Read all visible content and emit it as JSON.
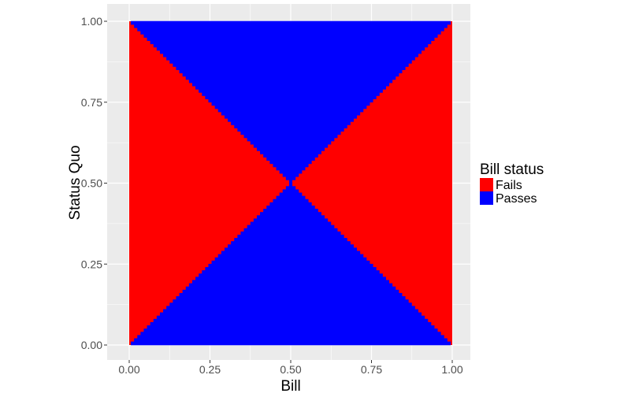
{
  "chart_data": {
    "type": "heatmap",
    "title": "",
    "xlabel": "Bill",
    "ylabel": "Status Quo",
    "xlim": [
      0,
      1
    ],
    "ylim": [
      0,
      1
    ],
    "x_ticks": [
      "0.00",
      "0.25",
      "0.50",
      "0.75",
      "1.00"
    ],
    "y_ticks": [
      "0.00",
      "0.25",
      "0.50",
      "0.75",
      "1.00"
    ],
    "grid": true,
    "legend": {
      "title": "Bill status",
      "placement": "right",
      "entries": [
        {
          "label": "Fails",
          "color": "#ff0000"
        },
        {
          "label": "Passes",
          "color": "#0000ff"
        }
      ]
    },
    "rule": "Passes when |Bill - 0.5| < |Status Quo - 0.5|, otherwise Fails",
    "resolution": 0.01,
    "colors": {
      "panel": "#ebebeb",
      "grid": "#ffffff",
      "fails": "#ff0000",
      "passes": "#0000ff"
    }
  }
}
